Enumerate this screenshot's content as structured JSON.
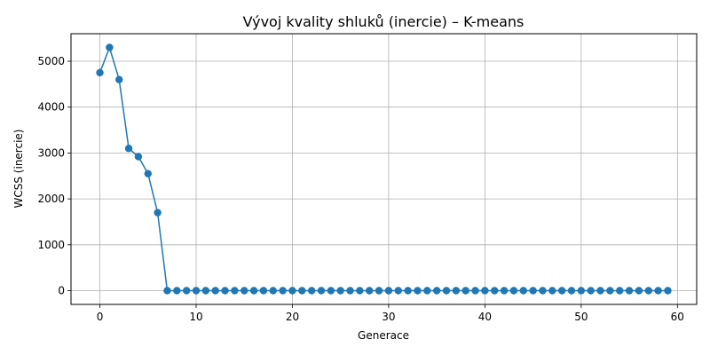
{
  "chart_data": {
    "type": "line",
    "title": "Vývoj kvality shluků (inercie) – K-means",
    "xlabel": "Generace",
    "ylabel": "WCSS (inercie)",
    "xlim": [
      -3,
      62
    ],
    "ylim": [
      -300,
      5600
    ],
    "xticks": [
      0,
      10,
      20,
      30,
      40,
      50,
      60
    ],
    "yticks": [
      0,
      1000,
      2000,
      3000,
      4000,
      5000
    ],
    "grid": true,
    "color": "#1f77b4",
    "series": [
      {
        "x": [
          0,
          1,
          2,
          3,
          4,
          5,
          6,
          7,
          8,
          9,
          10,
          11,
          12,
          13,
          14,
          15,
          16,
          17,
          18,
          19,
          20,
          21,
          22,
          23,
          24,
          25,
          26,
          27,
          28,
          29,
          30,
          31,
          32,
          33,
          34,
          35,
          36,
          37,
          38,
          39,
          40,
          41,
          42,
          43,
          44,
          45,
          46,
          47,
          48,
          49,
          50,
          51,
          52,
          53,
          54,
          55,
          56,
          57,
          58,
          59
        ],
        "values": [
          4750,
          5300,
          4600,
          3100,
          2920,
          2550,
          1700,
          0,
          0,
          0,
          0,
          0,
          0,
          0,
          0,
          0,
          0,
          0,
          0,
          0,
          0,
          0,
          0,
          0,
          0,
          0,
          0,
          0,
          0,
          0,
          0,
          0,
          0,
          0,
          0,
          0,
          0,
          0,
          0,
          0,
          0,
          0,
          0,
          0,
          0,
          0,
          0,
          0,
          0,
          0,
          0,
          0,
          0,
          0,
          0,
          0,
          0,
          0,
          0,
          0
        ]
      }
    ]
  }
}
